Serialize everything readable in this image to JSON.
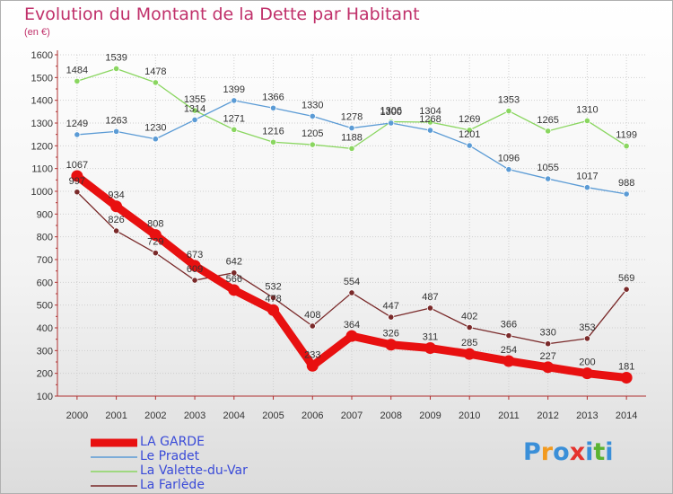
{
  "title": "Evolution du Montant de la Dette par Habitant",
  "unit": "(en €)",
  "logo": {
    "text": "Proxiti",
    "colors": [
      "#3a8fd8",
      "#f29a1f",
      "#3a8fd8",
      "#e5322d",
      "#3a8fd8",
      "#5bb332",
      "#3a8fd8"
    ]
  },
  "legend": [
    {
      "label": "LA GARDE"
    },
    {
      "label": "Le Pradet"
    },
    {
      "label": "La Valette-du-Var"
    },
    {
      "label": "La Farlède"
    }
  ],
  "chart_data": {
    "type": "line",
    "x": [
      2000,
      2001,
      2002,
      2003,
      2004,
      2005,
      2006,
      2007,
      2008,
      2009,
      2010,
      2011,
      2012,
      2013,
      2014
    ],
    "ylim": [
      100,
      1600
    ],
    "yticks": [
      100,
      200,
      300,
      400,
      500,
      600,
      700,
      800,
      900,
      1000,
      1100,
      1200,
      1300,
      1400,
      1500,
      1600
    ],
    "grid": true,
    "legend_position": "bottom-left",
    "series": [
      {
        "name": "LA GARDE",
        "color": "#e81010",
        "values": [
          1067,
          934,
          808,
          673,
          566,
          478,
          233,
          364,
          326,
          311,
          285,
          254,
          227,
          200,
          181
        ]
      },
      {
        "name": "Le Pradet",
        "color": "#5b9bd5",
        "values": [
          1249,
          1263,
          1230,
          1314,
          1399,
          1366,
          1330,
          1278,
          1300,
          1268,
          1201,
          1096,
          1055,
          1017,
          988
        ]
      },
      {
        "name": "La Valette-du-Var",
        "color": "#8ad660",
        "values": [
          1484,
          1539,
          1478,
          1355,
          1271,
          1216,
          1205,
          1188,
          1306,
          1304,
          1269,
          1353,
          1265,
          1310,
          1199
        ]
      },
      {
        "name": "La Farlède",
        "color": "#7a2a2a",
        "values": [
          997,
          826,
          729,
          609,
          642,
          532,
          408,
          554,
          447,
          487,
          402,
          366,
          330,
          353,
          569
        ]
      }
    ]
  }
}
